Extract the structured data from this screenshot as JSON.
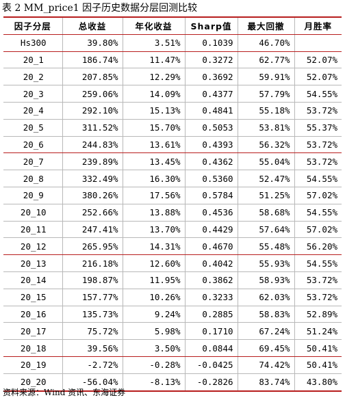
{
  "caption": "表 2 MM_price1 因子历史数据分层回测比较",
  "headers": [
    "因子分层",
    "总收益",
    "年化收益",
    "Sharp值",
    "最大回撤",
    "月胜率"
  ],
  "rows": [
    [
      "Hs300",
      "39.80%",
      "3.51%",
      "0.1039",
      "46.70%",
      ""
    ],
    [
      "20_1",
      "186.74%",
      "11.47%",
      "0.3272",
      "62.77%",
      "52.07%"
    ],
    [
      "20_2",
      "207.85%",
      "12.29%",
      "0.3692",
      "59.91%",
      "52.07%"
    ],
    [
      "20_3",
      "259.06%",
      "14.09%",
      "0.4377",
      "57.79%",
      "54.55%"
    ],
    [
      "20_4",
      "292.10%",
      "15.13%",
      "0.4841",
      "55.18%",
      "53.72%"
    ],
    [
      "20_5",
      "311.52%",
      "15.70%",
      "0.5053",
      "53.81%",
      "55.37%"
    ],
    [
      "20_6",
      "244.83%",
      "13.61%",
      "0.4393",
      "56.32%",
      "53.72%"
    ],
    [
      "20_7",
      "239.89%",
      "13.45%",
      "0.4362",
      "55.04%",
      "53.72%"
    ],
    [
      "20_8",
      "332.49%",
      "16.30%",
      "0.5360",
      "52.47%",
      "54.55%"
    ],
    [
      "20_9",
      "380.26%",
      "17.56%",
      "0.5784",
      "51.25%",
      "57.02%"
    ],
    [
      "20_10",
      "252.66%",
      "13.88%",
      "0.4536",
      "58.68%",
      "54.55%"
    ],
    [
      "20_11",
      "247.41%",
      "13.70%",
      "0.4429",
      "57.64%",
      "57.02%"
    ],
    [
      "20_12",
      "265.95%",
      "14.31%",
      "0.4670",
      "55.48%",
      "56.20%"
    ],
    [
      "20_13",
      "216.18%",
      "12.60%",
      "0.4042",
      "55.93%",
      "54.55%"
    ],
    [
      "20_14",
      "198.87%",
      "11.95%",
      "0.3862",
      "58.93%",
      "53.72%"
    ],
    [
      "20_15",
      "157.77%",
      "10.26%",
      "0.3233",
      "62.03%",
      "53.72%"
    ],
    [
      "20_16",
      "135.73%",
      "9.24%",
      "0.2885",
      "58.83%",
      "52.89%"
    ],
    [
      "20_17",
      "75.72%",
      "5.98%",
      "0.1710",
      "67.24%",
      "51.24%"
    ],
    [
      "20_18",
      "39.56%",
      "3.50%",
      "0.0844",
      "69.45%",
      "50.41%"
    ],
    [
      "20_19",
      "-2.72%",
      "-0.28%",
      "-0.0425",
      "74.42%",
      "50.41%"
    ],
    [
      "20_20",
      "-56.04%",
      "-8.13%",
      "-0.2826",
      "83.74%",
      "43.80%"
    ]
  ],
  "source": "资料来源：Wind 资讯、东海证券",
  "colors": {
    "rule": "#b71c1c",
    "grid": "#b8b8b8"
  }
}
